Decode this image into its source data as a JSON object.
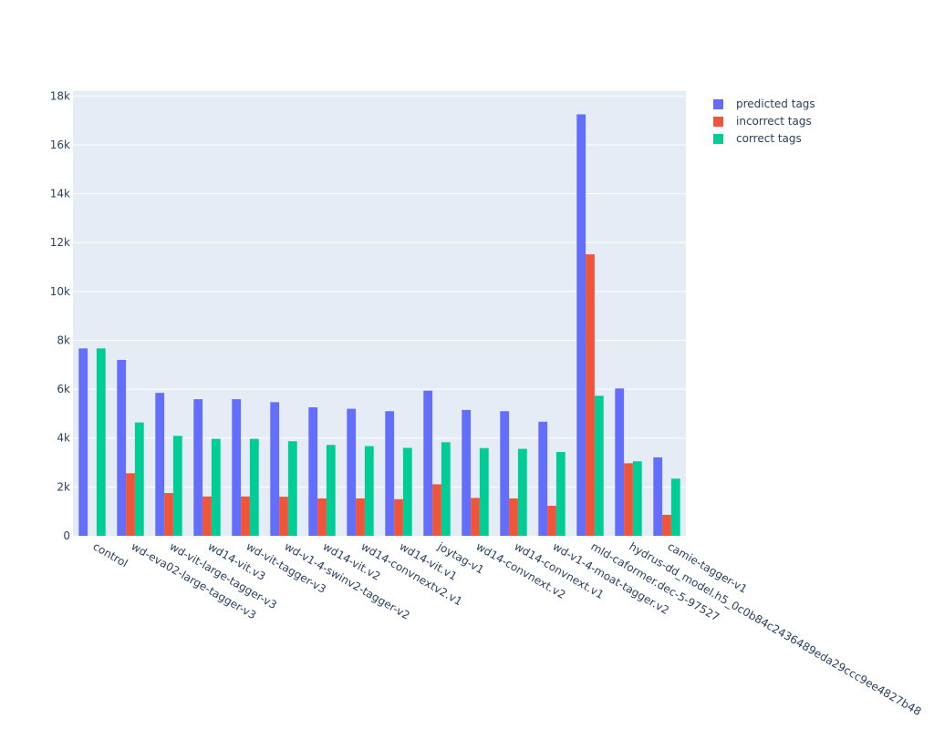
{
  "chart_data": {
    "type": "bar",
    "categories": [
      "control",
      "wd-eva02-large-tagger-v3",
      "wd-vit-large-tagger-v3",
      "wd14-vit.v3",
      "wd-vit-tagger-v3",
      "wd-v1-4-swinv2-tagger-v2",
      "wd14-vit.v2",
      "wd14-convnextv2.v1",
      "wd14-vit.v1",
      "joytag-v1",
      "wd14-convnext.v2",
      "wd14-convnext.v1",
      "wd-v1-4-moat-tagger.v2",
      "mld-caformer.dec-5-97527",
      "hydrus-dd_model.h5_0c0b84c2436489eda29ccc9ee4827b48",
      "camie-tagger-v1"
    ],
    "series": [
      {
        "name": "predicted tags",
        "color": "#636efa",
        "values": [
          7670,
          7200,
          5850,
          5590,
          5590,
          5470,
          5260,
          5200,
          5100,
          5940,
          5150,
          5100,
          4670,
          17250,
          6030,
          3210
        ]
      },
      {
        "name": "incorrect tags",
        "color": "#ef553b",
        "values": [
          0,
          2560,
          1750,
          1610,
          1610,
          1600,
          1530,
          1530,
          1500,
          2110,
          1550,
          1530,
          1230,
          11520,
          2970,
          860
        ]
      },
      {
        "name": "correct tags",
        "color": "#00cc96",
        "values": [
          7670,
          4640,
          4090,
          3970,
          3970,
          3870,
          3720,
          3670,
          3600,
          3830,
          3590,
          3560,
          3430,
          5730,
          3050,
          2340
        ]
      }
    ],
    "ylim": [
      0,
      18200
    ],
    "y_ticks": [
      {
        "value": 0,
        "label": "0"
      },
      {
        "value": 2000,
        "label": "2k"
      },
      {
        "value": 4000,
        "label": "4k"
      },
      {
        "value": 6000,
        "label": "6k"
      },
      {
        "value": 8000,
        "label": "8k"
      },
      {
        "value": 10000,
        "label": "10k"
      },
      {
        "value": 12000,
        "label": "12k"
      },
      {
        "value": 14000,
        "label": "14k"
      },
      {
        "value": 16000,
        "label": "16k"
      },
      {
        "value": 18000,
        "label": "18k"
      }
    ],
    "grid": true,
    "legend_position": "top-right",
    "plot_background": "#e5ecf6"
  }
}
